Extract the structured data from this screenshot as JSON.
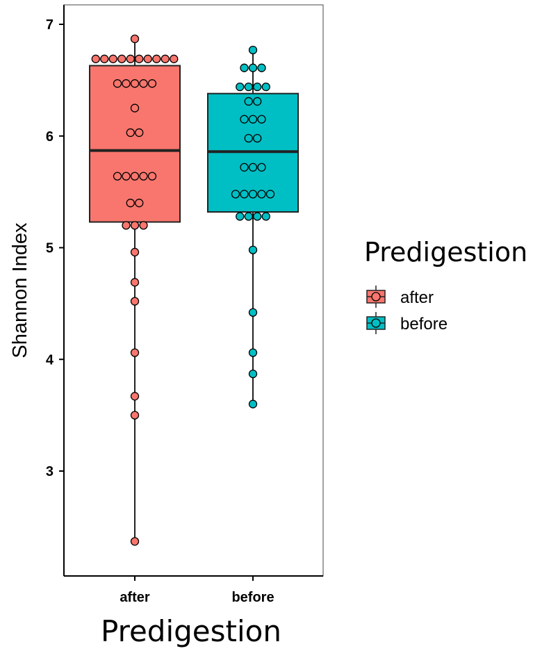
{
  "chart_data": {
    "type": "boxplot",
    "xlabel": "Predigestion",
    "ylabel": "Shannon Index",
    "ylim": [
      2.3,
      7.2
    ],
    "yticks": [
      3,
      4,
      5,
      6,
      7
    ],
    "categories": [
      "after",
      "before"
    ],
    "legend": {
      "title": "Predigestion",
      "position": "right",
      "entries": [
        "after",
        "before"
      ]
    },
    "colors": {
      "after": "#F8766D",
      "before": "#00BFC4",
      "outline": "#222222"
    },
    "grid": false,
    "series": [
      {
        "name": "after",
        "box": {
          "min": 2.37,
          "q1": 5.23,
          "median": 5.87,
          "q3": 6.63,
          "max": 6.87
        },
        "points": [
          6.87,
          6.69,
          6.69,
          6.69,
          6.69,
          6.69,
          6.69,
          6.69,
          6.69,
          6.69,
          6.69,
          6.47,
          6.47,
          6.47,
          6.47,
          6.47,
          6.25,
          6.03,
          6.03,
          5.64,
          5.64,
          5.64,
          5.64,
          5.64,
          5.4,
          5.4,
          5.2,
          5.2,
          5.2,
          4.96,
          4.69,
          4.52,
          4.06,
          3.67,
          3.5,
          2.37
        ]
      },
      {
        "name": "before",
        "box": {
          "min": 3.6,
          "q1": 5.32,
          "median": 5.86,
          "q3": 6.38,
          "max": 6.77
        },
        "points": [
          6.77,
          6.61,
          6.61,
          6.61,
          6.44,
          6.44,
          6.44,
          6.44,
          6.31,
          6.31,
          6.15,
          6.15,
          6.15,
          5.98,
          5.98,
          5.72,
          5.72,
          5.72,
          5.48,
          5.48,
          5.48,
          5.48,
          5.48,
          5.28,
          5.28,
          5.28,
          5.28,
          4.98,
          4.42,
          4.06,
          3.87,
          3.6
        ]
      }
    ]
  }
}
